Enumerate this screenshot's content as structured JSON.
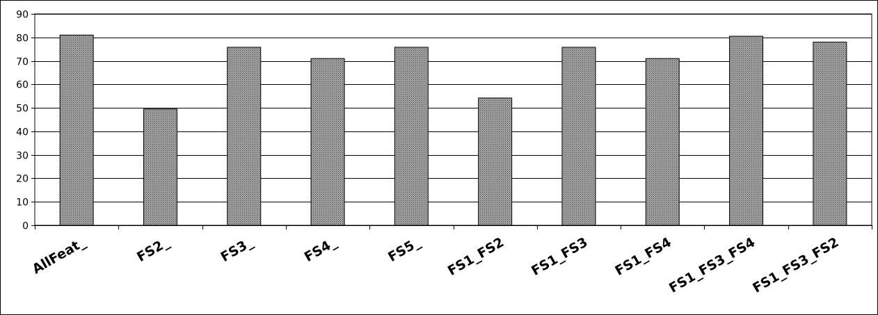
{
  "chart_data": {
    "type": "bar",
    "title": "",
    "xlabel": "",
    "ylabel": "",
    "categories": [
      "AllFeat_",
      "FS2_",
      "FS3_",
      "FS4_",
      "FS5_",
      "FS1_FS2",
      "FS1_FS3",
      "FS1_FS4",
      "FS1_FS3_FS4",
      "FS1_FS3_FS2"
    ],
    "values": [
      81,
      49.5,
      75.8,
      71,
      75.8,
      54.2,
      75.8,
      71,
      80.5,
      78
    ],
    "ylim": [
      0,
      90
    ],
    "yticks": [
      "0",
      "10",
      "20",
      "30",
      "40",
      "50",
      "60",
      "70",
      "80",
      "90"
    ],
    "grid": true,
    "legend": "none",
    "colors": {
      "bar_fill": "#9a9a9a",
      "bar_dots": "#4a4a4a",
      "bar_stroke": "#000000",
      "grid": "#000000"
    }
  }
}
